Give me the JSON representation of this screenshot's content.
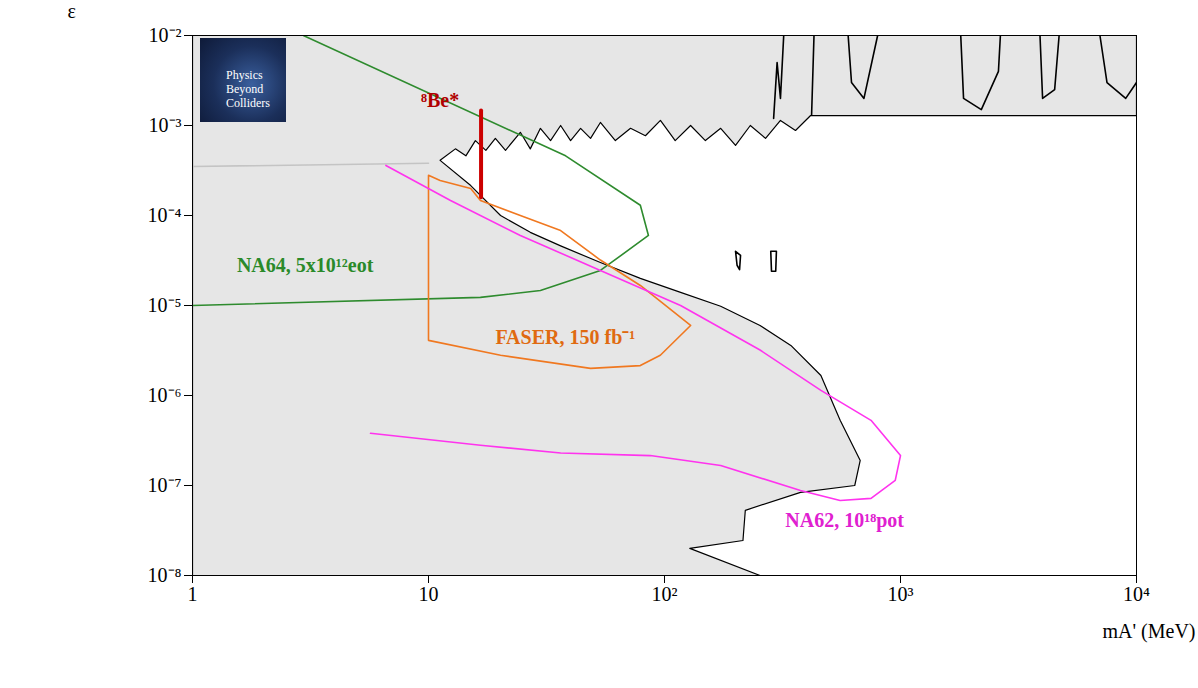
{
  "chart_data": {
    "type": "line",
    "x_label": "mA' (MeV)",
    "y_label": "ε",
    "log": true,
    "xlim": [
      1,
      10000
    ],
    "ylim": [
      1e-08,
      0.01
    ],
    "xticks": [
      1,
      10,
      {
        "value": 100,
        "label": "10²"
      },
      {
        "value": 1000,
        "label": "10³"
      },
      {
        "value": 10000,
        "label": "10⁴"
      }
    ],
    "yticks": [
      {
        "value": 1e-08,
        "label": "10⁻⁸"
      },
      {
        "value": 1e-07,
        "label": "10⁻⁷"
      },
      {
        "value": 1e-06,
        "label": "10⁻⁶"
      },
      {
        "value": 1e-05,
        "label": "10⁻⁵"
      },
      {
        "value": 0.0001,
        "label": "10⁻⁴"
      },
      {
        "value": 0.001,
        "label": "10⁻³"
      },
      {
        "value": 0.01,
        "label": "10⁻²"
      }
    ],
    "grid": false,
    "logo": "Physics Beyond Colliders",
    "series": [
      {
        "type": "area",
        "color": "#e6e6e6",
        "x": [
          1,
          1,
          10000,
          10000,
          416,
          359,
          310,
          268,
          231,
          200,
          173,
          149,
          129,
          111,
          96.1,
          83.0,
          71.8,
          61.9,
          53.5,
          48.6,
          44.1,
          40.0,
          36.3,
          32.9,
          29.8,
          27.0,
          24.5,
          21.2,
          19.2,
          17.5,
          15.8,
          14.4,
          13.0,
          11.2,
          15.1,
          20.2,
          27.0,
          36.3,
          53.5,
          79,
          117,
          173,
          254,
          343,
          460,
          555,
          675,
          640,
          377,
          220,
          215,
          128,
          254,
          1
        ],
        "values": [
          1e-08,
          0.01,
          0.01,
          0.00129,
          0.00129,
          0.00088,
          0.00114,
          0.00072,
          0.001,
          0.0006,
          0.00093,
          0.00068,
          0.001,
          0.00068,
          0.00114,
          0.00077,
          0.00093,
          0.00068,
          0.00108,
          0.00072,
          0.00093,
          0.00068,
          0.001,
          0.00068,
          0.00093,
          0.00055,
          0.00084,
          0.00053,
          0.00072,
          0.00053,
          0.00068,
          0.00046,
          0.00055,
          0.00041,
          0.000215,
          0.0001,
          6.5e-05,
          4.6e-05,
          3e-05,
          2e-05,
          1.4e-05,
          9.8e-06,
          6e-06,
          3.6e-06,
          1.67e-06,
          5.3e-07,
          1.9e-07,
          1e-07,
          8.4e-08,
          5.3e-08,
          2.45e-08,
          2e-08,
          1e-08,
          1e-08
        ]
      },
      {
        "type": "line",
        "color": "#c4c4c4",
        "x": [
          1,
          10
        ],
        "values": [
          0.00035,
          0.00038
        ]
      },
      {
        "type": "line",
        "color": "#000000",
        "x": [
          290,
          300,
          310,
          320
        ],
        "values": [
          0.0012,
          0.005,
          0.002,
          0.01
        ]
      },
      {
        "type": "line",
        "color": "#000000",
        "x": [
          420,
          430
        ],
        "values": [
          0.0013,
          0.01
        ]
      },
      {
        "type": "line",
        "color": "#000000",
        "x": [
          600,
          620,
          700,
          800
        ],
        "values": [
          0.01,
          0.003,
          0.002,
          0.01
        ]
      },
      {
        "type": "line",
        "color": "#000000",
        "x": [
          1800,
          1850,
          2200,
          2600,
          2650
        ],
        "values": [
          0.01,
          0.002,
          0.0015,
          0.004,
          0.01
        ]
      },
      {
        "type": "line",
        "color": "#000000",
        "x": [
          3900,
          4000,
          4500,
          4700
        ],
        "values": [
          0.01,
          0.002,
          0.0025,
          0.01
        ]
      },
      {
        "type": "line",
        "color": "#000000",
        "x": [
          7000,
          7500,
          9000,
          10000
        ],
        "values": [
          0.01,
          0.003,
          0.002,
          0.003
        ]
      },
      {
        "type": "line",
        "color": "#000000",
        "x": [
          200,
          210,
          208,
          203,
          200
        ],
        "values": [
          4e-05,
          3.6e-05,
          2.5e-05,
          2.8e-05,
          4e-05
        ]
      },
      {
        "type": "line",
        "color": "#000000",
        "x": [
          282,
          298,
          296,
          284,
          282
        ],
        "values": [
          4e-05,
          4e-05,
          2.4e-05,
          2.4e-05,
          4e-05
        ]
      },
      {
        "type": "line",
        "color": "#2e8b2e",
        "x": [
          2.95,
          38.1,
          79,
          85.5,
          53.5,
          29.8,
          16.6,
          1
        ],
        "values": [
          0.01,
          0.00046,
          0.00013,
          6e-05,
          2.45e-05,
          1.47e-05,
          1.23e-05,
          1e-05
        ]
      },
      {
        "type": "line",
        "color": "#f07820",
        "x": [
          10,
          11.2,
          15.1,
          16.6,
          24.5,
          36.3,
          53.5,
          79,
          129,
          96,
          79,
          48.6,
          20.2,
          10,
          10
        ],
        "values": [
          0.00028,
          0.000245,
          0.0002,
          0.000147,
          0.0001,
          6.8e-05,
          3.2e-05,
          1.67e-05,
          6e-06,
          2.8e-06,
          2.15e-06,
          2e-06,
          2.8e-06,
          4.1e-06,
          0.00028
        ]
      },
      {
        "type": "line",
        "color": "#ff33ee",
        "x": [
          6.6,
          12.4,
          24.5,
          53.5,
          117,
          254,
          460,
          750,
          1000,
          950,
          750,
          555,
          377,
          173,
          87,
          36.3,
          16.6,
          5.68
        ],
        "values": [
          0.00036,
          0.000147,
          6e-05,
          2.45e-05,
          1e-05,
          3.2e-06,
          1.14e-06,
          5.3e-07,
          2.15e-07,
          1.14e-07,
          7.2e-08,
          6.8e-08,
          8.8e-08,
          1.67e-07,
          2.15e-07,
          2.3e-07,
          2.8e-07,
          3.8e-07
        ]
      },
      {
        "type": "line",
        "color": "#cc0000",
        "line_style": "thick",
        "x": [
          16.7,
          16.7
        ],
        "values": [
          0.00016,
          0.00147
        ]
      }
    ],
    "annotations": [
      {
        "text": "NA64, 5x10¹²eot",
        "x": 3.0,
        "y": 2.8e-05,
        "color": "#2a8a2a"
      },
      {
        "text": "FASER, 150 fb⁻¹",
        "x": 38,
        "y": 4.4e-06,
        "color": "#e06a10"
      },
      {
        "text": "NA62, 10¹⁸pot",
        "x": 580,
        "y": 4.1e-08,
        "color": "#e020d0"
      },
      {
        "text": "⁸Be*",
        "x": 11.2,
        "y": 0.0019,
        "color": "#b00000"
      }
    ]
  }
}
